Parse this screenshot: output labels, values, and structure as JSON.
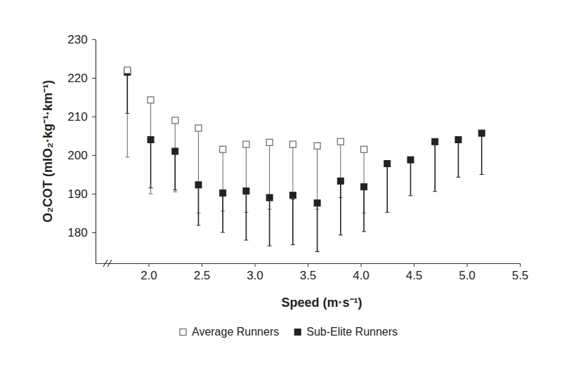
{
  "chart_data": {
    "type": "scatter",
    "x": [
      1.8,
      2.02,
      2.25,
      2.47,
      2.7,
      2.92,
      3.14,
      3.36,
      3.59,
      3.81,
      4.03,
      4.25,
      4.47,
      4.7,
      4.92,
      5.14
    ],
    "series": [
      {
        "name": "Average Runners",
        "color": "#666666",
        "marker": "square-open",
        "values": [
          222,
          214.3,
          209,
          207,
          201.5,
          202.8,
          203.3,
          202.8,
          202.4,
          203.5,
          201.5,
          null,
          null,
          null,
          null,
          null
        ],
        "errors": [
          22.5,
          24.3,
          18.5,
          22,
          16,
          17.6,
          17.3,
          14.3,
          16.4,
          14.5,
          16.5,
          null,
          null,
          null,
          null,
          null
        ]
      },
      {
        "name": "Sub-Elite Runners",
        "color": "#222222",
        "marker": "square",
        "values": [
          221.5,
          204,
          201,
          192.3,
          190.2,
          190.7,
          189,
          189.6,
          187.6,
          193.3,
          191.8,
          197.8,
          198.8,
          203.5,
          204,
          205.7
        ],
        "errors": [
          10.7,
          12.5,
          10,
          10.5,
          10.2,
          12.7,
          12.5,
          12.8,
          12.6,
          14,
          11.6,
          12.6,
          9.3,
          12.9,
          9.7,
          10.7
        ]
      }
    ],
    "x_label": "Speed (m·s⁻¹)",
    "y_label": "O₂COT (mlO₂·kg⁻¹·km⁻¹)",
    "xlim": [
      1.5,
      5.5
    ],
    "xticks": [
      {
        "value": 2,
        "label": "2.0"
      },
      {
        "value": 2.5,
        "label": "2.5"
      },
      {
        "value": 3,
        "label": "3.0"
      },
      {
        "value": 3.5,
        "label": "3.5"
      },
      {
        "value": 4,
        "label": "4.0"
      },
      {
        "value": 4.5,
        "label": "4.5"
      },
      {
        "value": 5,
        "label": "5.0"
      },
      {
        "value": 5.5,
        "label": "5.5"
      }
    ],
    "ylim": [
      172,
      230
    ],
    "yticks": [
      180,
      190,
      200,
      210,
      220,
      230
    ],
    "grid": false,
    "legend": "bottom"
  }
}
